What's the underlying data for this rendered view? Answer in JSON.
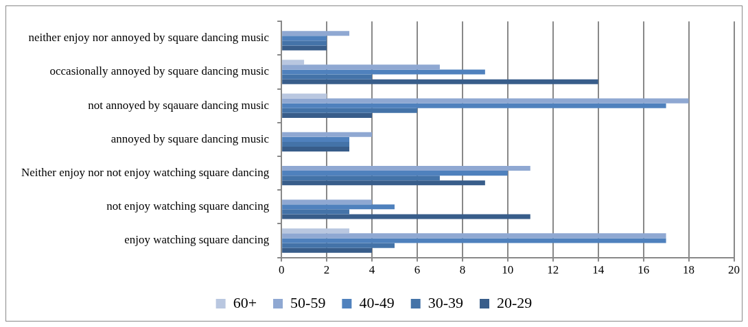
{
  "chart_data": {
    "type": "bar",
    "orientation": "horizontal",
    "categories": [
      "neither enjoy nor annoyed by square dancing music",
      "occasionally annoyed by square dancing music",
      "not annoyed by sqauare dancing music",
      "annoyed by square dancing music",
      "Neither enjoy nor not enjoy watching square dancing",
      "not enjoy watching square dancing",
      "enjoy watching square dancing"
    ],
    "series": [
      {
        "name": "60+",
        "color": "#b9c7e0",
        "values": [
          0,
          1,
          2,
          0,
          0,
          0,
          3
        ]
      },
      {
        "name": "50-59",
        "color": "#8fa8d2",
        "values": [
          3,
          7,
          18,
          4,
          11,
          4,
          17
        ]
      },
      {
        "name": "40-49",
        "color": "#4f81bd",
        "values": [
          2,
          9,
          17,
          3,
          10,
          5,
          17
        ]
      },
      {
        "name": "30-39",
        "color": "#4473a8",
        "values": [
          2,
          4,
          6,
          3,
          7,
          3,
          5
        ]
      },
      {
        "name": "20-29",
        "color": "#385d8a",
        "values": [
          2,
          14,
          4,
          3,
          9,
          11,
          4
        ]
      }
    ],
    "xlim": [
      0,
      20
    ],
    "xticks": [
      0,
      2,
      4,
      6,
      8,
      10,
      12,
      14,
      16,
      18,
      20
    ],
    "grid": "x",
    "legend": "bottom"
  }
}
